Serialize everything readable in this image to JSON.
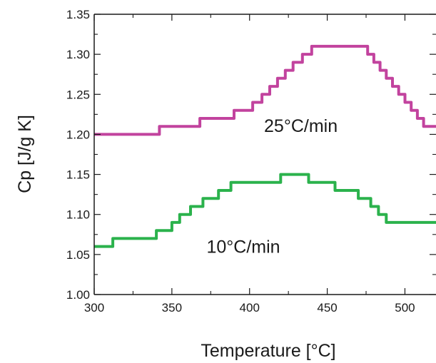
{
  "chart_data": {
    "type": "line",
    "xlabel": "Temperature [°C]",
    "ylabel": "Cp [J/g K]",
    "xlim": [
      300,
      520
    ],
    "ylim": [
      1.0,
      1.35
    ],
    "xticks": [
      300,
      350,
      400,
      450,
      500
    ],
    "yticks": [
      1.0,
      1.05,
      1.1,
      1.15,
      1.2,
      1.25,
      1.3,
      1.35
    ],
    "xtick_labels": [
      "300",
      "350",
      "400",
      "450",
      "500"
    ],
    "ytick_labels": [
      "1.00",
      "1.05",
      "1.10",
      "1.15",
      "1.20",
      "1.25",
      "1.30",
      "1.35"
    ],
    "grid": false,
    "series": [
      {
        "color": "#c2439e",
        "x": [
          300,
          342,
          342,
          368,
          368,
          390,
          390,
          402,
          402,
          408,
          408,
          413,
          413,
          418,
          418,
          423,
          423,
          428,
          428,
          434,
          434,
          440,
          440,
          448,
          448,
          452,
          452,
          476,
          476,
          480,
          480,
          484,
          484,
          488,
          488,
          492,
          492,
          496,
          496,
          500,
          500,
          504,
          504,
          508,
          508,
          512,
          512,
          520
        ],
        "y": [
          1.2,
          1.2,
          1.21,
          1.21,
          1.22,
          1.22,
          1.23,
          1.23,
          1.24,
          1.24,
          1.25,
          1.25,
          1.26,
          1.26,
          1.27,
          1.27,
          1.28,
          1.28,
          1.29,
          1.29,
          1.3,
          1.3,
          1.31,
          1.31,
          1.31,
          1.31,
          1.31,
          1.31,
          1.3,
          1.3,
          1.29,
          1.29,
          1.28,
          1.28,
          1.27,
          1.27,
          1.26,
          1.26,
          1.25,
          1.25,
          1.24,
          1.24,
          1.23,
          1.23,
          1.22,
          1.22,
          1.21,
          1.21
        ]
      },
      {
        "color": "#2bb24c",
        "x": [
          300,
          312,
          312,
          340,
          340,
          350,
          350,
          355,
          355,
          362,
          362,
          370,
          370,
          380,
          380,
          388,
          388,
          396,
          396,
          405,
          405,
          420,
          420,
          438,
          438,
          455,
          455,
          470,
          470,
          478,
          478,
          483,
          483,
          488,
          488,
          520
        ],
        "y": [
          1.06,
          1.06,
          1.07,
          1.07,
          1.08,
          1.08,
          1.09,
          1.09,
          1.1,
          1.1,
          1.11,
          1.11,
          1.12,
          1.12,
          1.13,
          1.13,
          1.14,
          1.14,
          1.14,
          1.14,
          1.14,
          1.14,
          1.15,
          1.15,
          1.14,
          1.14,
          1.13,
          1.13,
          1.12,
          1.12,
          1.11,
          1.11,
          1.1,
          1.1,
          1.09,
          1.09
        ]
      }
    ],
    "annotations": [
      {
        "text": "25°C/min",
        "x": 433,
        "y": 1.203
      },
      {
        "text": "10°C/min",
        "x": 396,
        "y": 1.052
      }
    ]
  }
}
